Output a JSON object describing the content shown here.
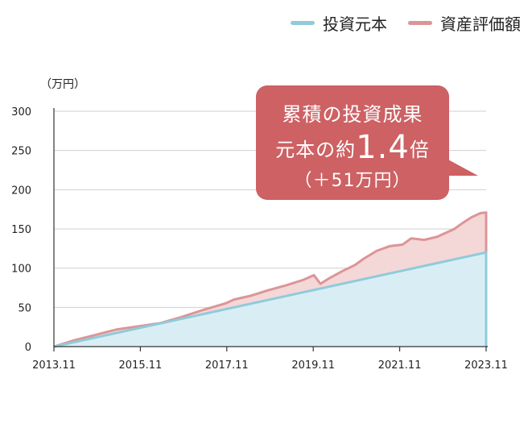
{
  "legend": {
    "principal_label": "投資元本",
    "value_label": "資産評価額"
  },
  "colors": {
    "principal_line": "#8fcbdb",
    "principal_fill": "#d9eef4",
    "value_line": "#dc9597",
    "value_fill": "#f4d7d7",
    "callout_bg": "#cd6163",
    "grid": "#cfcfcf",
    "axis": "#333333"
  },
  "callout": {
    "line1": "累積の投資成果",
    "line2_prefix": "元本の約",
    "line2_big": "1.4",
    "line2_suffix": "倍",
    "line3": "（＋51万円）"
  },
  "chart_data": {
    "type": "area",
    "ylabel": "（万円）",
    "ylim": [
      0,
      300
    ],
    "yticks": [
      0,
      50,
      100,
      150,
      200,
      250,
      300
    ],
    "xticks": [
      "2013.11",
      "2015.11",
      "2017.11",
      "2019.11",
      "2021.11",
      "2023.11"
    ],
    "xlim": [
      2013.833,
      2023.833
    ],
    "grid": true,
    "legend_position": "top-right",
    "series": [
      {
        "name": "投資元本",
        "x": [
          2013.833,
          2023.833
        ],
        "values": [
          0,
          120
        ]
      },
      {
        "name": "資産評価額",
        "x": [
          2013.833,
          2014.3,
          2014.8,
          2015.3,
          2015.8,
          2016.3,
          2016.8,
          2017.3,
          2017.8,
          2018.0,
          2018.4,
          2018.8,
          2019.2,
          2019.6,
          2019.85,
          2020.0,
          2020.2,
          2020.5,
          2020.8,
          2021.0,
          2021.3,
          2021.6,
          2021.9,
          2022.1,
          2022.4,
          2022.7,
          2022.9,
          2023.1,
          2023.3,
          2023.5,
          2023.7,
          2023.833
        ],
        "values": [
          0,
          8,
          15,
          22,
          26,
          30,
          38,
          47,
          55,
          60,
          65,
          72,
          78,
          85,
          91,
          80,
          87,
          96,
          104,
          112,
          122,
          128,
          130,
          138,
          136,
          140,
          145,
          150,
          158,
          165,
          170,
          171
        ]
      }
    ]
  }
}
